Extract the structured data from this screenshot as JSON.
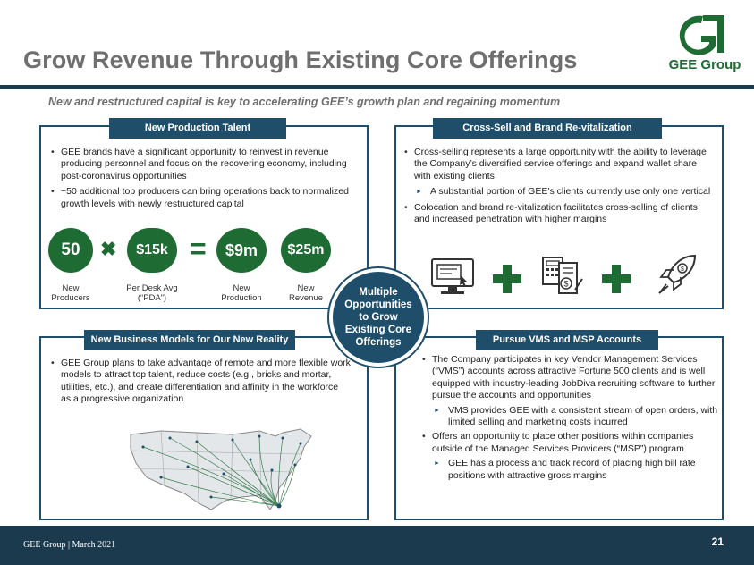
{
  "header": {
    "title": "Grow Revenue Through Existing Core Offerings",
    "logo_text": "GEE Group",
    "subtitle": "New and restructured capital is key to accelerating GEE’s growth plan and regaining momentum"
  },
  "colors": {
    "navy": "#1f4e6b",
    "green": "#1f6b34",
    "dark_rule": "#1c3a4d",
    "title_gray": "#6f6f6f"
  },
  "quadrants": {
    "production": {
      "heading": "New Production Talent",
      "bullets": [
        "GEE brands have a significant opportunity to reinvest in revenue producing personnel and focus on the recovering economy, including post-coronavirus opportunities",
        "~50 additional top producers can bring operations back to normalized growth levels with newly restructured capital"
      ],
      "stats": [
        {
          "value": "50",
          "label1": "New",
          "label2": "Producers"
        },
        {
          "value": "$15k",
          "label1": "Per Desk Avg",
          "label2": "(“PDA”)"
        },
        {
          "value": "$9m",
          "label1": "New",
          "label2": "Production"
        },
        {
          "value": "$25m",
          "label1": "New",
          "label2": "Revenue"
        }
      ],
      "operator_times": "✖",
      "operator_equals": "="
    },
    "cross_sell": {
      "heading": "Cross-Sell and Brand Re-vitalization",
      "bullet1": "Cross-selling represents a large opportunity with the ability to leverage the Company’s diversified service offerings and expand wallet share with existing clients",
      "sub1": "A substantial portion of GEE’s clients currently use only one vertical",
      "bullet2": "Colocation and brand re-vitalization facilitates cross-selling of clients and increased penetration with higher margins",
      "icons": [
        "computer-icon",
        "plus-icon",
        "invoice-icon",
        "plus-icon",
        "rocket-icon"
      ]
    },
    "business_models": {
      "heading": "New Business Models for Our New Reality",
      "bullets": [
        "GEE Group plans to take advantage of remote and more flexible work models to attract top talent, reduce costs (e.g., bricks and mortar, utilities, etc.), and create differentiation and affinity in the workforce as a progressive organization."
      ]
    },
    "vms": {
      "heading": "Pursue VMS and MSP Accounts",
      "bullet1": "The Company participates in key Vendor Management Services (“VMS”) accounts across attractive Fortune 500 clients and is well equipped with industry-leading JobDiva recruiting software to further pursue the accounts and opportunities",
      "sub1": "VMS provides GEE with a consistent stream of open orders, with limited selling and marketing costs incurred",
      "bullet2": "Offers an opportunity to place other positions within companies outside of the Managed Services Providers (“MSP”) program",
      "sub2": "GEE has a process and track record of placing high bill rate positions with attractive gross margins"
    }
  },
  "center": {
    "text": "Multiple Opportunities to Grow Existing Core Offerings"
  },
  "footer": {
    "left": "GEE Group | March 2021",
    "page": "21"
  }
}
